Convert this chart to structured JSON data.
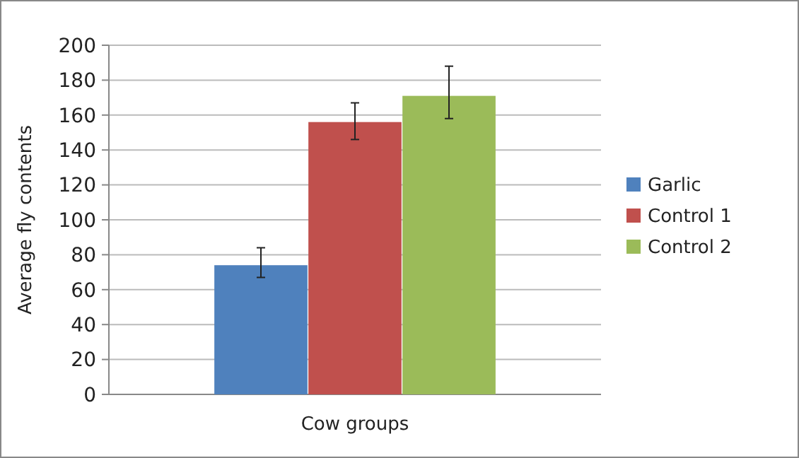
{
  "chart_data": {
    "type": "bar",
    "xlabel": "Cow groups",
    "ylabel": "Average fly contents",
    "categories": [
      null
    ],
    "series": [
      {
        "name": "Garlic",
        "color": "#4f81bd",
        "values": [
          74
        ],
        "errors": [
          [
            67,
            84
          ]
        ]
      },
      {
        "name": "Control 1",
        "color": "#c0504d",
        "values": [
          156
        ],
        "errors": [
          [
            146,
            167
          ]
        ]
      },
      {
        "name": "Control 2",
        "color": "#9bbb59",
        "values": [
          171
        ],
        "errors": [
          [
            158,
            188
          ]
        ]
      }
    ],
    "ylim": [
      0,
      200
    ],
    "yticks": [
      0,
      20,
      40,
      60,
      80,
      100,
      120,
      140,
      160,
      180,
      200
    ],
    "grid": "y",
    "legend": "right"
  }
}
